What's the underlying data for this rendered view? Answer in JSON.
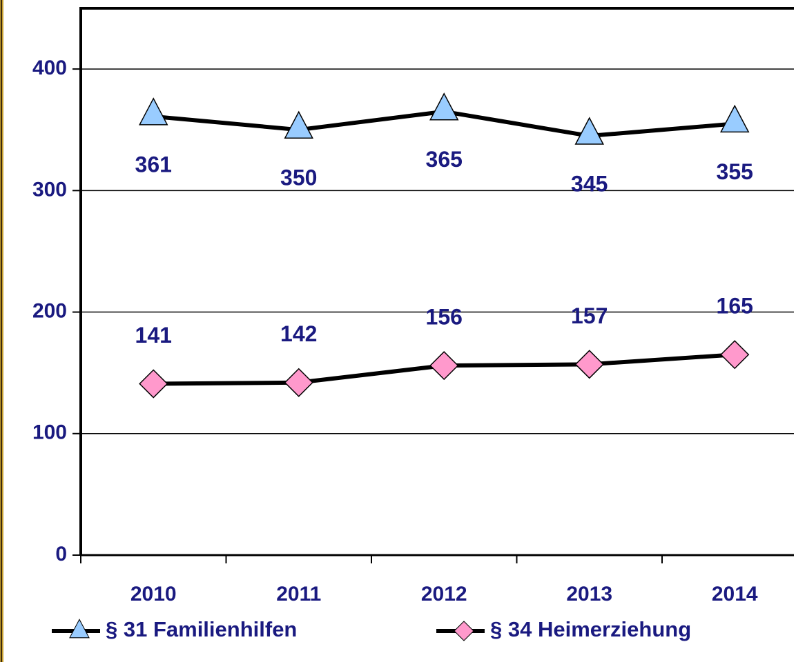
{
  "chart_data": {
    "type": "line",
    "categories": [
      "2010",
      "2011",
      "2012",
      "2013",
      "2014"
    ],
    "series": [
      {
        "name": "§ 31 Familienhilfen",
        "color": "#99ccff",
        "marker": "triangle",
        "values": [
          361,
          350,
          365,
          345,
          355
        ]
      },
      {
        "name": "§ 34 Heimerziehung",
        "color": "#ff99cc",
        "marker": "diamond",
        "values": [
          141,
          142,
          156,
          157,
          165
        ]
      }
    ],
    "ylim": [
      0,
      450
    ],
    "yticks": [
      0,
      100,
      200,
      300,
      400
    ],
    "grid": true,
    "legend": "bottom"
  }
}
